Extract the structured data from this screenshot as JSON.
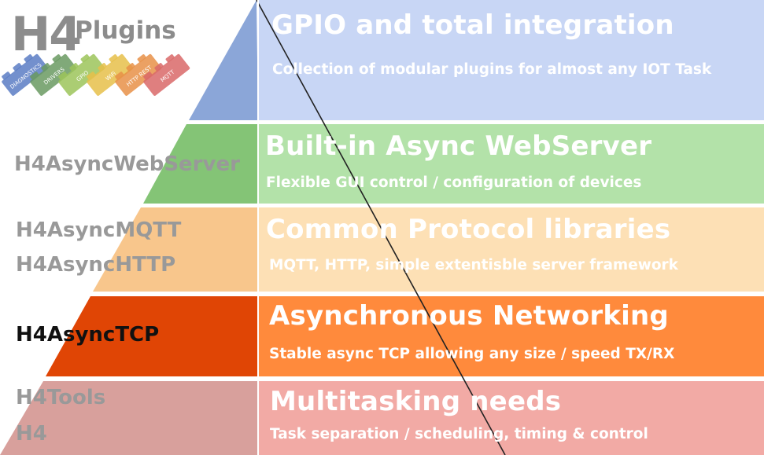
{
  "logo": {
    "text_h4": "H4",
    "text_plugins": "Plugins",
    "bricks": [
      {
        "label": "DIAGNOSTICS",
        "color": "#5b7cc4"
      },
      {
        "label": "DRIVERS",
        "color": "#6a9a62"
      },
      {
        "label": "GPIO",
        "color": "#9cc45a"
      },
      {
        "label": "WiFi",
        "color": "#e6c04a"
      },
      {
        "label": "HTTP REST",
        "color": "#e89048"
      },
      {
        "label": "MQTT",
        "color": "#d96868"
      }
    ]
  },
  "layers": [
    {
      "id": "plugins",
      "title": "GPIO and total integration",
      "description": "Collection of modular plugins for almost any IOT Task",
      "libraries": [],
      "color": "#c8d6f5",
      "pyramid_color": "#8ba6d8"
    },
    {
      "id": "webserver",
      "title": "Built-in Async WebServer",
      "description": "Flexible GUI control / configuration of devices",
      "libraries": [
        "H4AsyncWebServer"
      ],
      "color": "#b3e2a9",
      "pyramid_color": "#84c476"
    },
    {
      "id": "protocols",
      "title": "Common Protocol libraries",
      "description": "MQTT, HTTP, simple extentisble server framework",
      "libraries": [
        "H4AsyncMQTT",
        "H4AsyncHTTP"
      ],
      "color": "#fde0b5",
      "pyramid_color": "#f8c68c"
    },
    {
      "id": "networking",
      "title": "Asynchronous Networking",
      "description": "Stable async TCP allowing any size / speed TX/RX",
      "libraries": [
        "H4AsyncTCP"
      ],
      "color": "#ff8a3c",
      "pyramid_color": "#e04505"
    },
    {
      "id": "multitasking",
      "title": "Multitasking needs",
      "description": "Task separation / scheduling, timing & control",
      "libraries": [
        "H4Tools",
        "H4"
      ],
      "color": "#f2aaa5",
      "pyramid_color": "#d8a09c"
    }
  ]
}
